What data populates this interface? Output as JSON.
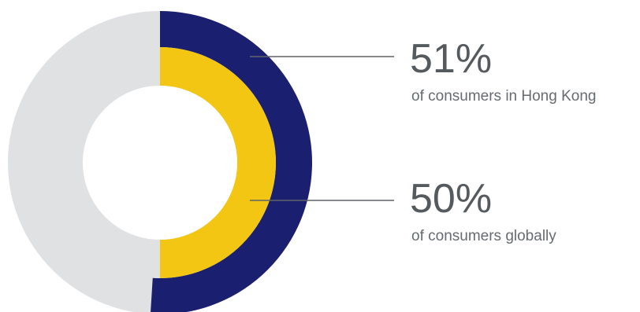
{
  "chart_data": {
    "type": "pie",
    "subtype": "nested-donut",
    "series": [
      {
        "label": "of consumers in Hong Kong",
        "value": 51,
        "display": "51%",
        "color": "#1b1f6f",
        "ring": "outer"
      },
      {
        "label": "of consumers globally",
        "value": 50,
        "display": "50%",
        "color": "#f3c614",
        "ring": "inner"
      }
    ],
    "remainder_color": "#e0e1e3",
    "connector_color": "#5f6368"
  }
}
